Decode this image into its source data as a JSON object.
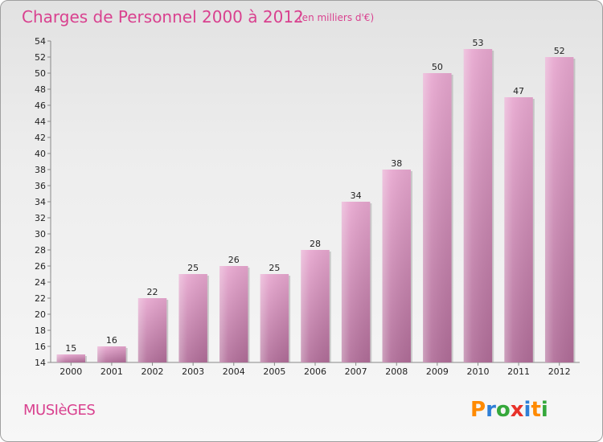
{
  "chart_data": {
    "type": "bar",
    "title": "Charges de Personnel 2000 à 2012",
    "subtitle": "(en milliers d'€)",
    "categories": [
      "2000",
      "2001",
      "2002",
      "2003",
      "2004",
      "2005",
      "2006",
      "2007",
      "2008",
      "2009",
      "2010",
      "2011",
      "2012"
    ],
    "values": [
      15,
      16,
      22,
      25,
      26,
      25,
      28,
      34,
      38,
      50,
      53,
      47,
      52
    ],
    "ylim": [
      14,
      54
    ],
    "yticks": [
      14,
      16,
      18,
      20,
      22,
      24,
      26,
      28,
      30,
      32,
      34,
      36,
      38,
      40,
      42,
      44,
      46,
      48,
      50,
      52,
      54
    ],
    "xlabel": "",
    "ylabel": "",
    "grid": false,
    "bar_color": "#d98bbb"
  },
  "footer": {
    "commune": "MUSIèGES",
    "brand": "Proxiti",
    "brand_letters": [
      "P",
      "r",
      "o",
      "x",
      "i",
      "t",
      "i"
    ],
    "brand_colors": [
      "#ff8a00",
      "#2f7fd6",
      "#35a83b",
      "#e8322a",
      "#2f7fd6",
      "#ff8a00",
      "#35a83b"
    ]
  }
}
